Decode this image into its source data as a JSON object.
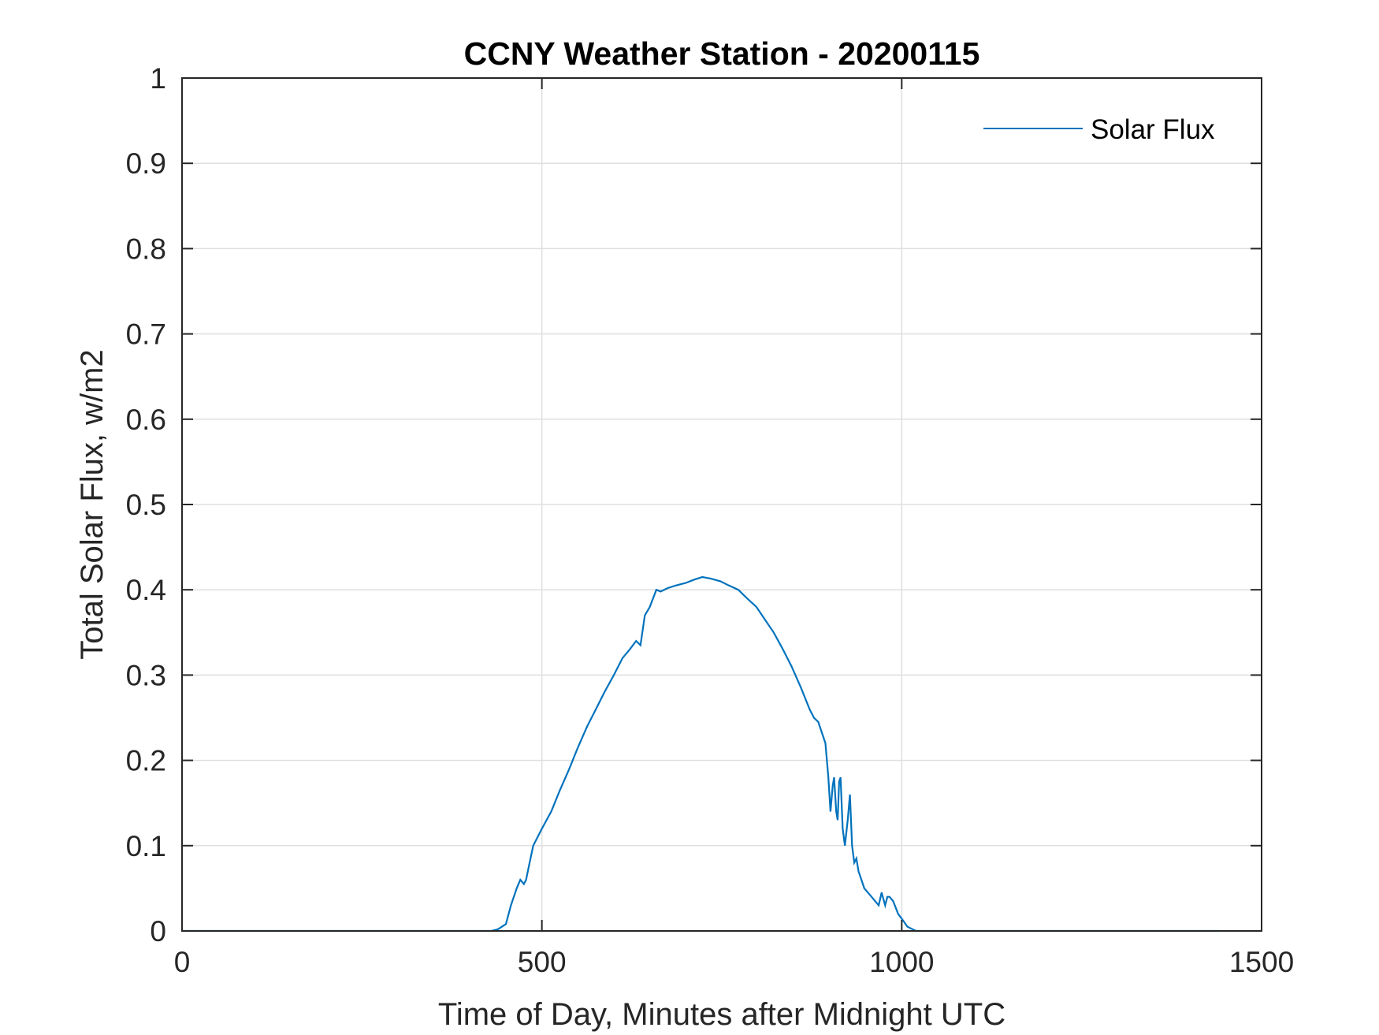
{
  "chart_data": {
    "type": "line",
    "title": "CCNY Weather Station - 20200115",
    "xlabel": "Time of Day, Minutes after Midnight UTC",
    "ylabel": "Total Solar Flux, w/m2",
    "xlim": [
      0,
      1500
    ],
    "ylim": [
      0,
      1
    ],
    "xticks": [
      "0",
      "500",
      "1000",
      "1500"
    ],
    "yticks": [
      "0",
      "0.1",
      "0.2",
      "0.3",
      "0.4",
      "0.5",
      "0.6",
      "0.7",
      "0.8",
      "0.9",
      "1"
    ],
    "grid": true,
    "legend": {
      "position": "top-right",
      "entries": [
        "Solar Flux"
      ]
    },
    "series": [
      {
        "name": "Solar Flux",
        "color": "#0072BD",
        "x": [
          0,
          430,
          439,
          450,
          457,
          465,
          470,
          475,
          478,
          483,
          488,
          500,
          513,
          525,
          538,
          550,
          563,
          575,
          587,
          600,
          612,
          622,
          631,
          637,
          643,
          650,
          659,
          665,
          675,
          686,
          700,
          712,
          723,
          735,
          748,
          760,
          773,
          785,
          798,
          810,
          822,
          835,
          847,
          860,
          872,
          878,
          884,
          890,
          894,
          898,
          901,
          904,
          906,
          909,
          911,
          913,
          915,
          918,
          921,
          925,
          928,
          931,
          934,
          937,
          940,
          944,
          948,
          953,
          958,
          963,
          968,
          972,
          977,
          980,
          983,
          988,
          995,
          1002,
          1008,
          1015,
          1020,
          1030,
          1100,
          1200,
          1300,
          1441
        ],
        "y": [
          0,
          0,
          0.002,
          0.008,
          0.03,
          0.05,
          0.06,
          0.055,
          0.06,
          0.08,
          0.1,
          0.12,
          0.14,
          0.165,
          0.19,
          0.215,
          0.24,
          0.26,
          0.28,
          0.3,
          0.32,
          0.33,
          0.34,
          0.335,
          0.37,
          0.38,
          0.4,
          0.398,
          0.402,
          0.405,
          0.408,
          0.412,
          0.415,
          0.413,
          0.41,
          0.405,
          0.4,
          0.39,
          0.38,
          0.365,
          0.35,
          0.33,
          0.31,
          0.285,
          0.26,
          0.25,
          0.245,
          0.23,
          0.22,
          0.18,
          0.14,
          0.17,
          0.18,
          0.14,
          0.13,
          0.175,
          0.18,
          0.12,
          0.1,
          0.13,
          0.16,
          0.1,
          0.08,
          0.085,
          0.07,
          0.06,
          0.05,
          0.045,
          0.04,
          0.035,
          0.03,
          0.045,
          0.03,
          0.04,
          0.04,
          0.035,
          0.02,
          0.012,
          0.005,
          0.002,
          0,
          0,
          0,
          0,
          0,
          0
        ]
      }
    ]
  }
}
